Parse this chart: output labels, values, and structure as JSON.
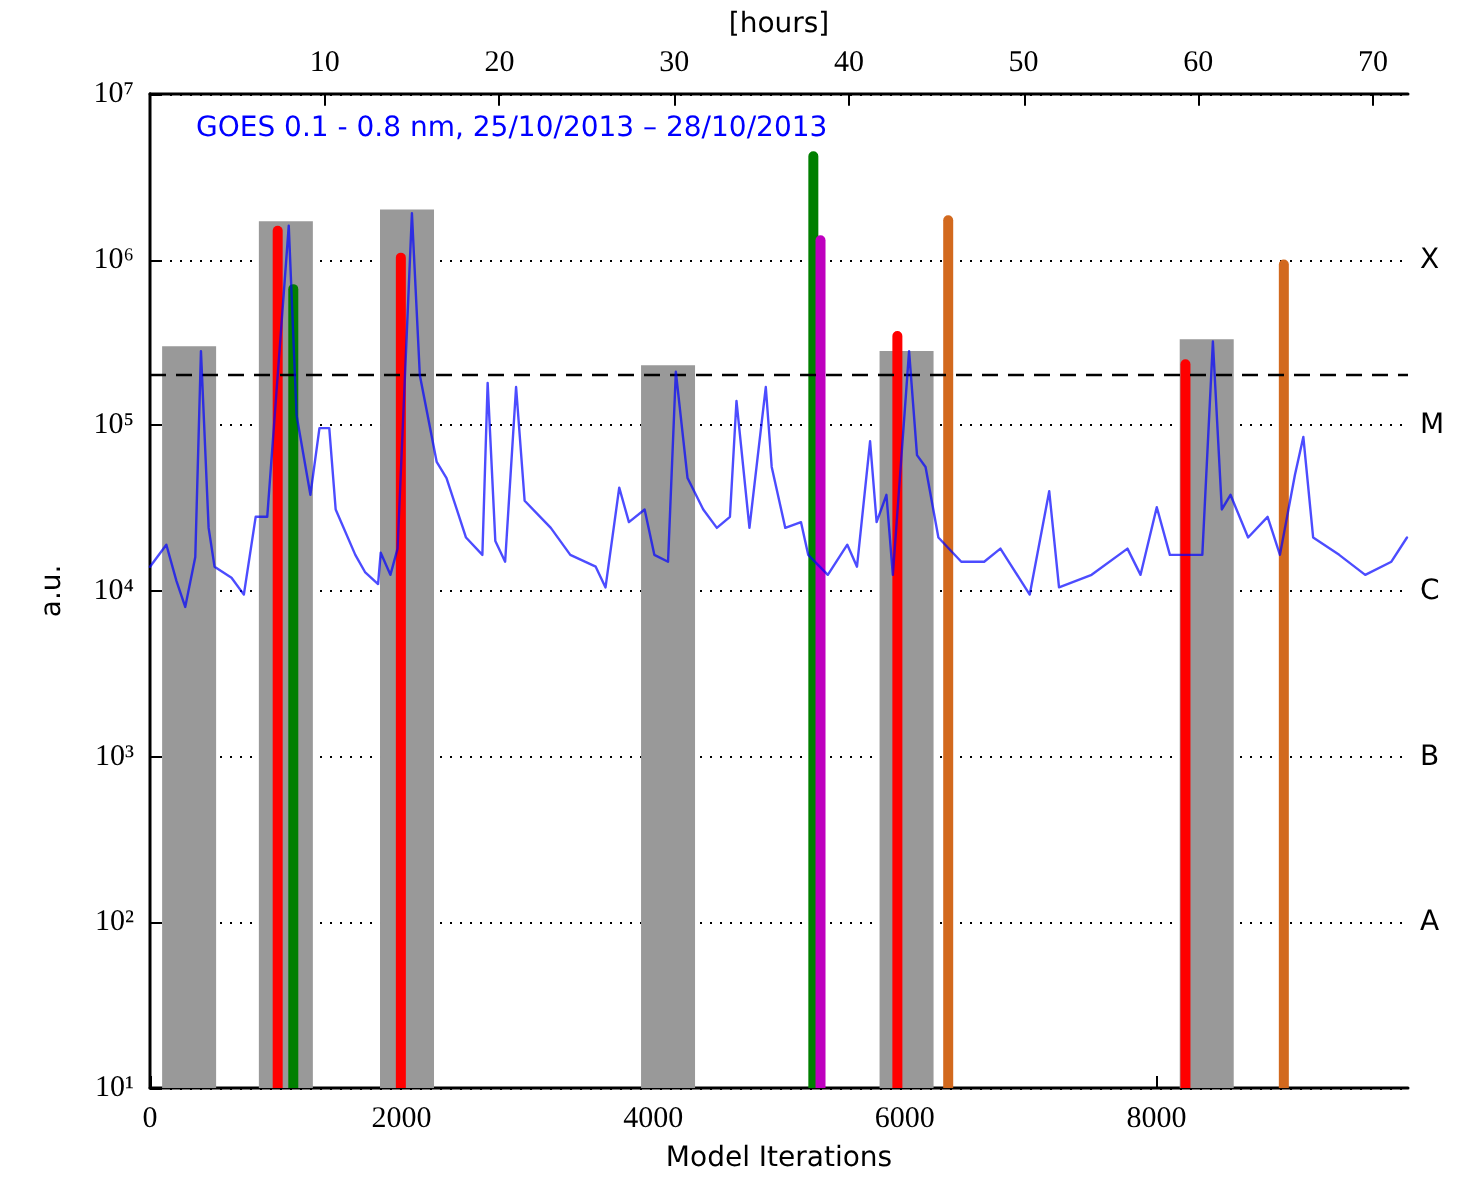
{
  "chart_data": {
    "type": "line",
    "xlabel": "Model Iterations",
    "ylabel": "a.u.",
    "x2label": "[hours]",
    "xlim": [
      0,
      10000
    ],
    "xticks": [
      0,
      2000,
      4000,
      6000,
      8000
    ],
    "x2lim": [
      0,
      72
    ],
    "x2ticks": [
      10,
      20,
      30,
      40,
      50,
      60,
      70
    ],
    "ylim": [
      10,
      10000000
    ],
    "yticks": [
      {
        "value": 10,
        "label": "10¹"
      },
      {
        "value": 100,
        "label": "10²"
      },
      {
        "value": 1000,
        "label": "10³"
      },
      {
        "value": 10000,
        "label": "10⁴"
      },
      {
        "value": 100000,
        "label": "10⁵"
      },
      {
        "value": 1000000,
        "label": "10⁶"
      },
      {
        "value": 10000000,
        "label": "10⁷"
      }
    ],
    "annotations": [
      "A",
      "B",
      "C",
      "M",
      "X"
    ],
    "log": "y",
    "grid": "y",
    "legend": "top left",
    "marker": "none",
    "ref_lines": [
      {
        "axis": "y",
        "value": 200000,
        "color": "#000000",
        "line_style": "dashed"
      }
    ],
    "series": [
      {
        "type": "bar",
        "color": "#999999",
        "x": [
          311,
          1080,
          2043,
          4118,
          6014,
          8400
        ],
        "values": [
          300000,
          1700000,
          2000000,
          230000,
          280000,
          330000
        ]
      },
      {
        "name": "GOES 0.1 - 0.8 nm, 25/10/2013 – 28/10/2013",
        "color": "#0000ff",
        "x": [
          0,
          130,
          210,
          280,
          360,
          405,
          466,
          513,
          648,
          746,
          840,
          932,
          1103,
          1165,
          1275,
          1347,
          1425,
          1476,
          1632,
          1709,
          1813,
          1834,
          1911,
          1968,
          2082,
          2145,
          2279,
          2357,
          2512,
          2642,
          2684,
          2745,
          2823,
          2910,
          2978,
          3186,
          3341,
          3543,
          3621,
          3730,
          3807,
          3932,
          4009,
          4118,
          4180,
          4273,
          4398,
          4506,
          4610,
          4662,
          4765,
          4895,
          4942,
          5050,
          5175,
          5232,
          5388,
          5543,
          5620,
          5724,
          5776,
          5854,
          5905,
          6034,
          6097,
          6165,
          6267,
          6449,
          6631,
          6760,
          6993,
          7148,
          7226,
          7485,
          7770,
          7874,
          8003,
          8107,
          8365,
          8449,
          8520,
          8589,
          8729,
          8884,
          8982,
          9101,
          9168,
          9246,
          9453,
          9660,
          9868,
          9992
        ],
        "values": [
          14000,
          19000,
          11500,
          8000,
          16000,
          280000,
          24000,
          14000,
          12000,
          9500,
          28000,
          28000,
          1600000,
          115000,
          38000,
          96000,
          96000,
          31000,
          16500,
          13000,
          11000,
          17000,
          12500,
          18000,
          1900000,
          200000,
          60000,
          48000,
          21000,
          16500,
          180000,
          20000,
          15000,
          170000,
          35000,
          24000,
          16500,
          14000,
          10500,
          42000,
          26000,
          31000,
          16500,
          15000,
          210000,
          48000,
          31000,
          24000,
          28000,
          140000,
          24000,
          170000,
          56000,
          24000,
          26000,
          16500,
          12500,
          19000,
          14000,
          80000,
          26000,
          38000,
          12500,
          280000,
          66000,
          56000,
          21000,
          15000,
          15000,
          18000,
          9500,
          40000,
          10500,
          12500,
          18000,
          12500,
          32000,
          16500,
          16500,
          320000,
          31000,
          38000,
          21000,
          28000,
          16500,
          50000,
          85000,
          21000,
          16500,
          12500,
          15000,
          21000
        ]
      },
      {
        "type": "bar",
        "colors": [
          "#ff0000",
          "#007f00",
          "#ff0000",
          "#007f00",
          "#bf00bf",
          "#ff0000",
          "#d2691e",
          "#ff0000",
          "#d2691e"
        ],
        "x": [
          1015,
          1139,
          1994,
          5273,
          5330,
          5941,
          6345,
          8231,
          9013
        ],
        "values": [
          1600000,
          710000,
          1100000,
          4500000,
          1400000,
          370000,
          1850000,
          250000,
          1000000
        ]
      }
    ]
  }
}
